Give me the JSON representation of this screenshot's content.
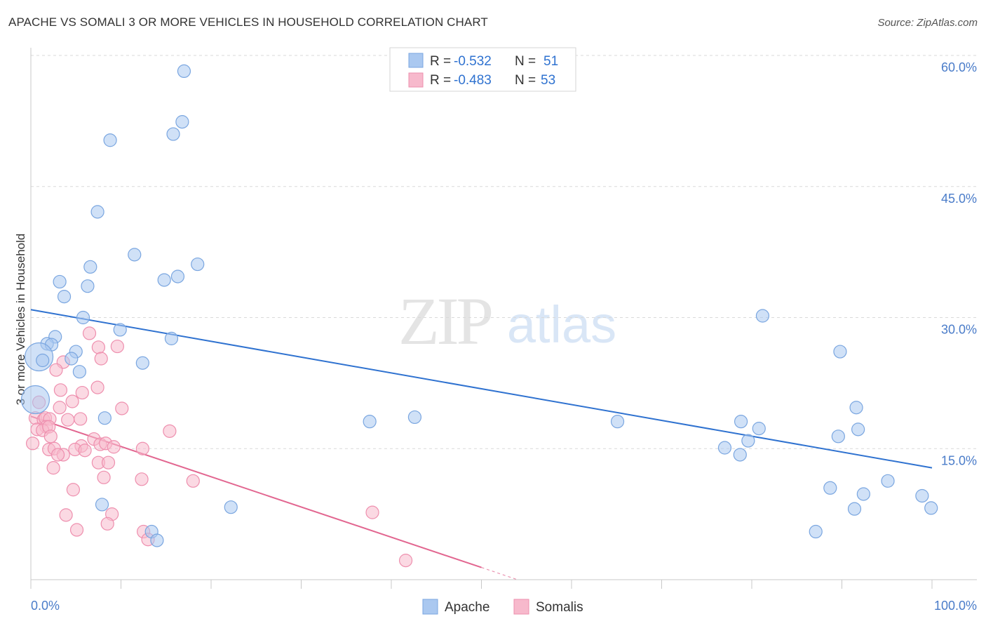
{
  "header": {
    "title": "APACHE VS SOMALI 3 OR MORE VEHICLES IN HOUSEHOLD CORRELATION CHART",
    "source": "Source: ZipAtlas.com"
  },
  "watermark": {
    "zip": "ZIP",
    "atlas": "atlas"
  },
  "colors": {
    "apache_fill": "#aac8f0",
    "apache_stroke": "#7aa6e0",
    "apache_line": "#2f72d0",
    "somali_fill": "#f7b9cc",
    "somali_stroke": "#ee8fae",
    "somali_line": "#e26690",
    "grid": "#d9d9d9",
    "tick_text": "#4a7cc9"
  },
  "legend": {
    "rows": [
      {
        "r_label": "R =",
        "r_value": "-0.532",
        "n_label": "N =",
        "n_value": "51"
      },
      {
        "r_label": "R =",
        "r_value": "-0.483",
        "n_label": "N =",
        "n_value": "53"
      }
    ]
  },
  "chart_data": {
    "type": "scatter",
    "title": "APACHE VS SOMALI 3 OR MORE VEHICLES IN HOUSEHOLD CORRELATION CHART",
    "xlabel": "",
    "ylabel": "3 or more Vehicles in Household",
    "xlim": [
      0,
      100
    ],
    "ylim": [
      0,
      60
    ],
    "x_tick_labels": [
      "0.0%",
      "100.0%"
    ],
    "y_ticks": [
      15,
      30,
      45,
      60
    ],
    "y_tick_labels": [
      "15.0%",
      "30.0%",
      "45.0%",
      "60.0%"
    ],
    "grid": true,
    "legend_position": "top-center",
    "series": [
      {
        "name": "Apache",
        "r": -0.532,
        "n": 51,
        "trend": {
          "x": [
            0,
            100
          ],
          "y": [
            30.9,
            12.8
          ]
        },
        "points": [
          [
            17.0,
            58.2
          ],
          [
            16.8,
            52.4
          ],
          [
            15.8,
            51.0
          ],
          [
            8.8,
            50.3
          ],
          [
            7.4,
            42.1
          ],
          [
            11.5,
            37.2
          ],
          [
            18.5,
            36.1
          ],
          [
            6.6,
            35.8
          ],
          [
            16.3,
            34.7
          ],
          [
            14.8,
            34.3
          ],
          [
            3.2,
            34.1
          ],
          [
            6.3,
            33.6
          ],
          [
            3.7,
            32.4
          ],
          [
            5.8,
            30.0
          ],
          [
            9.9,
            28.6
          ],
          [
            15.6,
            27.6
          ],
          [
            2.7,
            27.8
          ],
          [
            1.8,
            27.0
          ],
          [
            2.3,
            26.9
          ],
          [
            5.0,
            26.1
          ],
          [
            0.9,
            25.5
          ],
          [
            1.3,
            25.1
          ],
          [
            4.5,
            25.3
          ],
          [
            12.4,
            24.8
          ],
          [
            5.4,
            23.8
          ],
          [
            0.5,
            20.6
          ],
          [
            8.2,
            18.5
          ],
          [
            37.6,
            18.1
          ],
          [
            42.6,
            18.6
          ],
          [
            65.1,
            18.1
          ],
          [
            81.2,
            30.2
          ],
          [
            89.8,
            26.1
          ],
          [
            91.6,
            19.7
          ],
          [
            91.8,
            17.2
          ],
          [
            78.8,
            18.1
          ],
          [
            80.8,
            17.3
          ],
          [
            79.6,
            15.9
          ],
          [
            89.6,
            16.4
          ],
          [
            77.0,
            15.1
          ],
          [
            78.7,
            14.3
          ],
          [
            95.1,
            11.3
          ],
          [
            88.7,
            10.5
          ],
          [
            92.4,
            9.8
          ],
          [
            98.9,
            9.6
          ],
          [
            99.9,
            8.2
          ],
          [
            91.4,
            8.1
          ],
          [
            7.9,
            8.6
          ],
          [
            22.2,
            8.3
          ],
          [
            13.4,
            5.5
          ],
          [
            14.0,
            4.5
          ],
          [
            87.1,
            5.5
          ]
        ]
      },
      {
        "name": "Somalis",
        "r": -0.483,
        "n": 53,
        "trend": {
          "x": [
            0,
            50
          ],
          "y": [
            18.7,
            1.4
          ]
        },
        "trend_dashed": {
          "x": [
            50,
            54
          ],
          "y": [
            1.4,
            0.0
          ]
        },
        "points": [
          [
            6.5,
            28.2
          ],
          [
            9.6,
            26.7
          ],
          [
            7.5,
            26.6
          ],
          [
            7.8,
            25.3
          ],
          [
            3.6,
            24.9
          ],
          [
            2.8,
            24.0
          ],
          [
            7.4,
            22.0
          ],
          [
            3.3,
            21.7
          ],
          [
            5.7,
            21.4
          ],
          [
            4.6,
            20.4
          ],
          [
            0.9,
            20.3
          ],
          [
            3.2,
            19.7
          ],
          [
            10.1,
            19.6
          ],
          [
            0.5,
            18.5
          ],
          [
            1.4,
            18.3
          ],
          [
            1.6,
            18.5
          ],
          [
            2.1,
            18.4
          ],
          [
            4.1,
            18.3
          ],
          [
            5.5,
            18.4
          ],
          [
            1.7,
            17.5
          ],
          [
            0.7,
            17.2
          ],
          [
            1.3,
            17.1
          ],
          [
            2.0,
            17.5
          ],
          [
            15.4,
            17.0
          ],
          [
            2.2,
            16.4
          ],
          [
            7.0,
            16.1
          ],
          [
            0.2,
            15.6
          ],
          [
            7.7,
            15.5
          ],
          [
            5.6,
            15.3
          ],
          [
            8.3,
            15.6
          ],
          [
            9.2,
            15.2
          ],
          [
            12.4,
            15.0
          ],
          [
            2.0,
            14.9
          ],
          [
            2.6,
            15.0
          ],
          [
            4.9,
            14.9
          ],
          [
            6.0,
            14.8
          ],
          [
            3.6,
            14.3
          ],
          [
            3.0,
            14.3
          ],
          [
            7.5,
            13.4
          ],
          [
            8.6,
            13.4
          ],
          [
            2.5,
            12.8
          ],
          [
            8.1,
            11.7
          ],
          [
            12.3,
            11.5
          ],
          [
            18.0,
            11.3
          ],
          [
            4.7,
            10.3
          ],
          [
            3.9,
            7.4
          ],
          [
            9.0,
            7.5
          ],
          [
            37.9,
            7.7
          ],
          [
            8.5,
            6.4
          ],
          [
            12.5,
            5.5
          ],
          [
            41.6,
            2.2
          ],
          [
            5.1,
            5.7
          ],
          [
            13.0,
            4.6
          ]
        ]
      }
    ]
  },
  "bottom_legend": {
    "items": [
      "Apache",
      "Somalis"
    ]
  }
}
